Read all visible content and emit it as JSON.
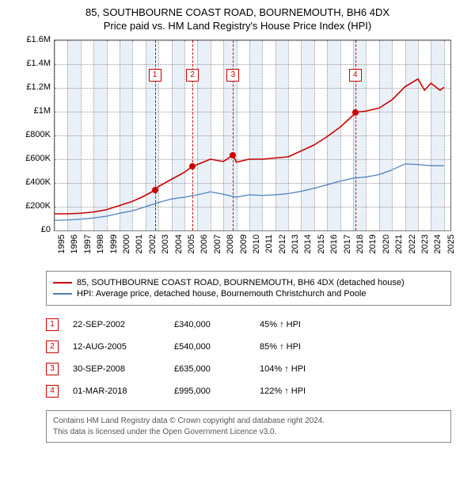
{
  "title": "85, SOUTHBOURNE COAST ROAD, BOURNEMOUTH, BH6 4DX",
  "subtitle": "Price paid vs. HM Land Registry's House Price Index (HPI)",
  "chart": {
    "type": "line",
    "background_color": "#ffffff",
    "grid_color": "#999999",
    "shade_color": "#dfe9f5",
    "marker_color": "#cc0000",
    "x_min": 1995,
    "x_max": 2025.5,
    "y_min": 0,
    "y_max": 1600000,
    "y_ticks": [
      {
        "v": 0,
        "label": "£0"
      },
      {
        "v": 200000,
        "label": "£200K"
      },
      {
        "v": 400000,
        "label": "£400K"
      },
      {
        "v": 600000,
        "label": "£600K"
      },
      {
        "v": 800000,
        "label": "£800K"
      },
      {
        "v": 1000000,
        "label": "£1M"
      },
      {
        "v": 1200000,
        "label": "£1.2M"
      },
      {
        "v": 1400000,
        "label": "£1.4M"
      },
      {
        "v": 1600000,
        "label": "£1.6M"
      }
    ],
    "x_ticks": [
      1995,
      1996,
      1997,
      1998,
      1999,
      2000,
      2001,
      2002,
      2003,
      2004,
      2005,
      2006,
      2007,
      2008,
      2009,
      2010,
      2011,
      2012,
      2013,
      2014,
      2015,
      2016,
      2017,
      2018,
      2019,
      2020,
      2021,
      2022,
      2023,
      2024,
      2025
    ],
    "series": [
      {
        "name": "property",
        "color": "#cc0000",
        "width": 1.6,
        "points": [
          [
            1995,
            140000
          ],
          [
            1996,
            140000
          ],
          [
            1997,
            145000
          ],
          [
            1998,
            155000
          ],
          [
            1999,
            175000
          ],
          [
            2000,
            210000
          ],
          [
            2001,
            245000
          ],
          [
            2002,
            295000
          ],
          [
            2002.72,
            340000
          ],
          [
            2003,
            370000
          ],
          [
            2004,
            430000
          ],
          [
            2005,
            490000
          ],
          [
            2005.62,
            540000
          ],
          [
            2006,
            555000
          ],
          [
            2007,
            600000
          ],
          [
            2008,
            580000
          ],
          [
            2008.75,
            635000
          ],
          [
            2009,
            575000
          ],
          [
            2010,
            600000
          ],
          [
            2011,
            600000
          ],
          [
            2012,
            610000
          ],
          [
            2013,
            620000
          ],
          [
            2014,
            670000
          ],
          [
            2015,
            720000
          ],
          [
            2016,
            790000
          ],
          [
            2017,
            870000
          ],
          [
            2018,
            970000
          ],
          [
            2018.17,
            995000
          ],
          [
            2019,
            1005000
          ],
          [
            2020,
            1030000
          ],
          [
            2021,
            1100000
          ],
          [
            2022,
            1210000
          ],
          [
            2023,
            1275000
          ],
          [
            2023.5,
            1180000
          ],
          [
            2024,
            1240000
          ],
          [
            2024.7,
            1180000
          ],
          [
            2025,
            1205000
          ]
        ]
      },
      {
        "name": "hpi",
        "color": "#4a7fc0",
        "width": 1.2,
        "points": [
          [
            1995,
            85000
          ],
          [
            1996,
            88000
          ],
          [
            1997,
            95000
          ],
          [
            1998,
            105000
          ],
          [
            1999,
            120000
          ],
          [
            2000,
            145000
          ],
          [
            2001,
            165000
          ],
          [
            2002,
            200000
          ],
          [
            2003,
            235000
          ],
          [
            2004,
            265000
          ],
          [
            2005,
            280000
          ],
          [
            2006,
            300000
          ],
          [
            2007,
            325000
          ],
          [
            2008,
            305000
          ],
          [
            2009,
            280000
          ],
          [
            2010,
            300000
          ],
          [
            2011,
            295000
          ],
          [
            2012,
            300000
          ],
          [
            2013,
            310000
          ],
          [
            2014,
            330000
          ],
          [
            2015,
            355000
          ],
          [
            2016,
            385000
          ],
          [
            2017,
            415000
          ],
          [
            2018,
            440000
          ],
          [
            2019,
            450000
          ],
          [
            2020,
            470000
          ],
          [
            2021,
            510000
          ],
          [
            2022,
            560000
          ],
          [
            2023,
            555000
          ],
          [
            2024,
            545000
          ],
          [
            2025,
            545000
          ]
        ]
      }
    ],
    "sale_markers": [
      {
        "idx": "1",
        "year": 2002.72,
        "price": 340000,
        "box_top": 36
      },
      {
        "idx": "2",
        "year": 2005.62,
        "price": 540000,
        "box_top": 36
      },
      {
        "idx": "3",
        "year": 2008.75,
        "price": 635000,
        "box_top": 36
      },
      {
        "idx": "4",
        "year": 2018.17,
        "price": 995000,
        "box_top": 36
      }
    ]
  },
  "legend": [
    {
      "color": "#cc0000",
      "label": "85, SOUTHBOURNE COAST ROAD, BOURNEMOUTH, BH6 4DX (detached house)"
    },
    {
      "color": "#4a7fc0",
      "label": "HPI: Average price, detached house, Bournemouth Christchurch and Poole"
    }
  ],
  "sales_table": [
    {
      "idx": "1",
      "date": "22-SEP-2002",
      "price": "£340,000",
      "pct": "45% ↑ HPI"
    },
    {
      "idx": "2",
      "date": "12-AUG-2005",
      "price": "£540,000",
      "pct": "85% ↑ HPI"
    },
    {
      "idx": "3",
      "date": "30-SEP-2008",
      "price": "£635,000",
      "pct": "104% ↑ HPI"
    },
    {
      "idx": "4",
      "date": "01-MAR-2018",
      "price": "£995,000",
      "pct": "122% ↑ HPI"
    }
  ],
  "footer": {
    "line1": "Contains HM Land Registry data © Crown copyright and database right 2024.",
    "line2": "This data is licensed under the Open Government Licence v3.0."
  }
}
